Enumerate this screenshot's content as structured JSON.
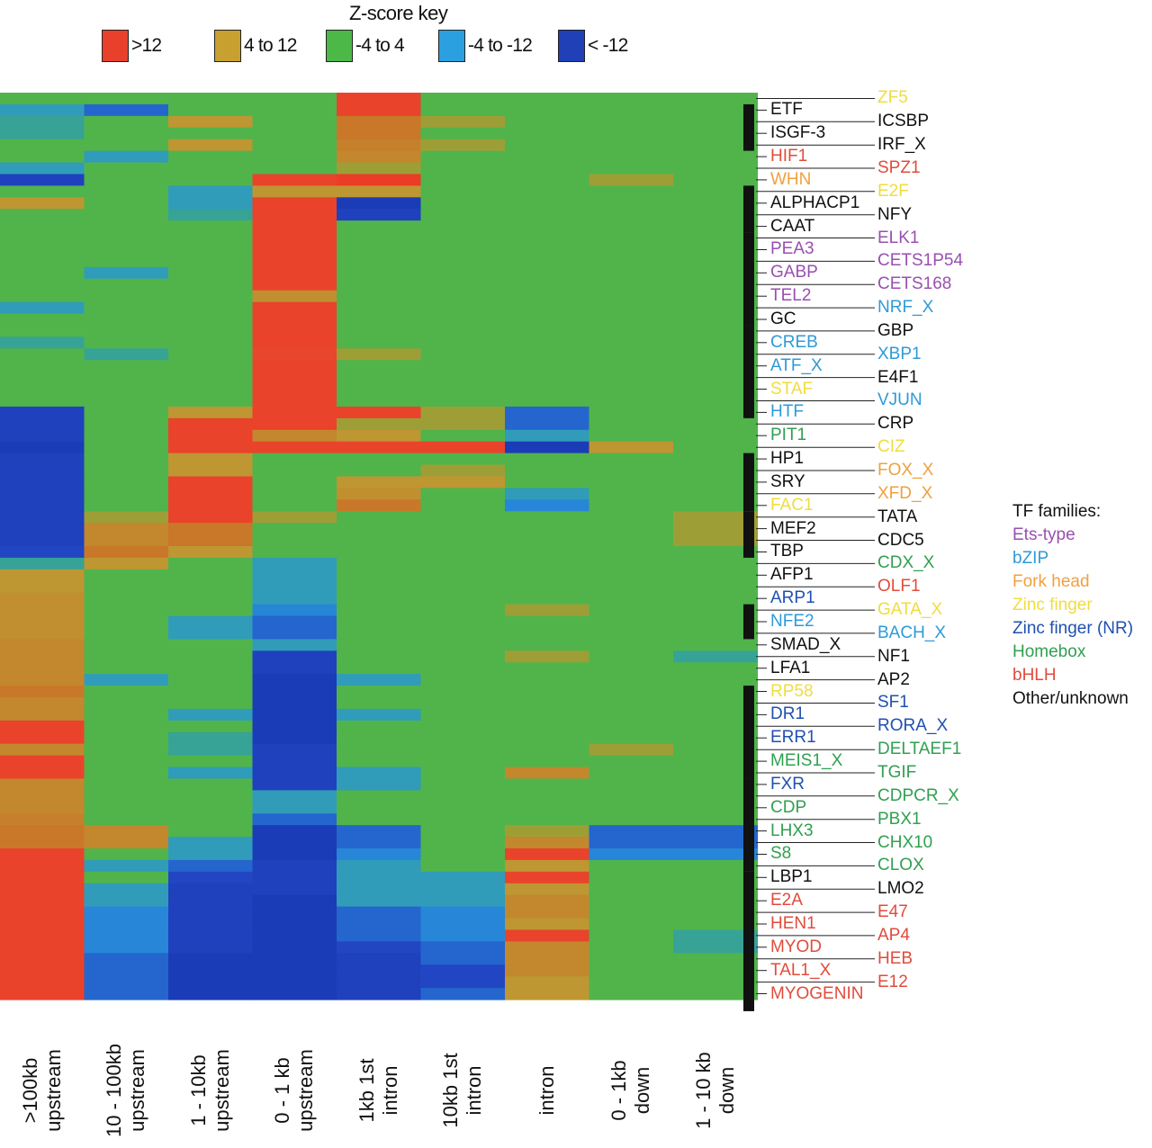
{
  "key": {
    "title": "Z-score key",
    "items": [
      {
        "label": ">12",
        "color": "#e8402a"
      },
      {
        "label": "4 to 12",
        "color": "#c8a030"
      },
      {
        "label": "-4 to 4",
        "color": "#4cb848"
      },
      {
        "label": "-4 to -12",
        "color": "#2aa0e0"
      },
      {
        "label": "< -12",
        "color": "#2040b8"
      }
    ]
  },
  "families": {
    "title": "TF families:",
    "items": [
      {
        "label": "Ets-type",
        "color": "#9a4fb0"
      },
      {
        "label": "bZIP",
        "color": "#2e9ad8"
      },
      {
        "label": "Fork head",
        "color": "#f0a040"
      },
      {
        "label": "Zinc finger",
        "color": "#f0dc40"
      },
      {
        "label": "Zinc finger (NR)",
        "color": "#2050b0"
      },
      {
        "label": "Homebox",
        "color": "#30a050"
      },
      {
        "label": "bHLH",
        "color": "#e04c3c"
      },
      {
        "label": "Other/unknown",
        "color": "#111111"
      }
    ]
  },
  "chart_data": {
    "type": "heatmap",
    "title": "Z-score key",
    "columns": [
      ">100kb upstream",
      "10 - 100kb upstream",
      "1 - 10kb upstream",
      "0 - 1 kb upstream",
      "1kb 1st intron",
      "10kb 1st intron",
      "intron",
      "0 - 1kb down",
      "1 - 10 kb down"
    ],
    "column_lines": [
      [
        ">100kb",
        "upstream"
      ],
      [
        "10 - 100kb",
        "upstream"
      ],
      [
        "1 - 10kb",
        "upstream"
      ],
      [
        "0 - 1 kb",
        "upstream"
      ],
      [
        "1kb 1st",
        "intron"
      ],
      [
        "10kb 1st",
        "intron"
      ],
      [
        "intron"
      ],
      [
        "0 - 1kb",
        "down"
      ],
      [
        "1 - 10 kb",
        "down"
      ]
    ],
    "rows": [
      {
        "name": "ZF5",
        "family": "Zinc finger",
        "values": [
          0,
          0,
          0,
          0,
          14,
          0,
          0,
          0,
          0
        ]
      },
      {
        "name": "ETF",
        "family": "Other/unknown",
        "values": [
          -6,
          -10,
          0,
          0,
          14,
          0,
          0,
          0,
          0
        ]
      },
      {
        "name": "ICSBP",
        "family": "Other/unknown",
        "values": [
          -5,
          0,
          6,
          0,
          10,
          5,
          0,
          0,
          0
        ]
      },
      {
        "name": "ISGF-3",
        "family": "Other/unknown",
        "values": [
          -5,
          0,
          0,
          0,
          10,
          0,
          0,
          0,
          0
        ]
      },
      {
        "name": "IRF_X",
        "family": "Other/unknown",
        "values": [
          0,
          0,
          6,
          0,
          9,
          5,
          0,
          0,
          0
        ]
      },
      {
        "name": "HIF1",
        "family": "bHLH",
        "values": [
          0,
          -6,
          0,
          0,
          8,
          0,
          0,
          0,
          0
        ]
      },
      {
        "name": "SPZ1",
        "family": "bHLH",
        "values": [
          -6,
          0,
          0,
          0,
          5,
          0,
          0,
          0,
          0
        ]
      },
      {
        "name": "WHN",
        "family": "Fork head",
        "values": [
          -13,
          0,
          0,
          14,
          16,
          0,
          0,
          5,
          0
        ]
      },
      {
        "name": "E2F",
        "family": "Zinc finger",
        "values": [
          0,
          0,
          -6,
          6,
          6,
          0,
          0,
          0,
          0
        ]
      },
      {
        "name": "ALPHACP1",
        "family": "Other/unknown",
        "values": [
          6,
          0,
          -6,
          14,
          -14,
          0,
          0,
          0,
          0
        ]
      },
      {
        "name": "NFY",
        "family": "Other/unknown",
        "values": [
          0,
          0,
          -5,
          14,
          -13,
          0,
          0,
          0,
          0
        ]
      },
      {
        "name": "CAAT",
        "family": "Other/unknown",
        "values": [
          0,
          0,
          0,
          14,
          0,
          0,
          0,
          0,
          0
        ]
      },
      {
        "name": "ELK1",
        "family": "Ets-type",
        "values": [
          0,
          0,
          0,
          14,
          0,
          0,
          0,
          0,
          0
        ]
      },
      {
        "name": "PEA3",
        "family": "Ets-type",
        "values": [
          0,
          0,
          0,
          14,
          0,
          0,
          0,
          0,
          0
        ]
      },
      {
        "name": "CETS1P54",
        "family": "Ets-type",
        "values": [
          0,
          0,
          0,
          14,
          0,
          0,
          0,
          0,
          0
        ]
      },
      {
        "name": "GABP",
        "family": "Ets-type",
        "values": [
          0,
          -6,
          0,
          14,
          0,
          0,
          0,
          0,
          0
        ]
      },
      {
        "name": "CETS168",
        "family": "Ets-type",
        "values": [
          0,
          0,
          0,
          14,
          0,
          0,
          0,
          0,
          0
        ]
      },
      {
        "name": "TEL2",
        "family": "Ets-type",
        "values": [
          0,
          0,
          0,
          7,
          0,
          0,
          0,
          0,
          0
        ]
      },
      {
        "name": "NRF_X",
        "family": "bZIP",
        "values": [
          -6,
          0,
          0,
          14,
          0,
          0,
          0,
          0,
          0
        ]
      },
      {
        "name": "GC",
        "family": "Other/unknown",
        "values": [
          0,
          0,
          0,
          14,
          0,
          0,
          0,
          0,
          0
        ]
      },
      {
        "name": "GBP",
        "family": "Other/unknown",
        "values": [
          0,
          0,
          0,
          14,
          0,
          0,
          0,
          0,
          0
        ]
      },
      {
        "name": "CREB",
        "family": "bZIP",
        "values": [
          -5,
          0,
          0,
          14,
          0,
          0,
          0,
          0,
          0
        ]
      },
      {
        "name": "XBP1",
        "family": "bZIP",
        "values": [
          0,
          -5,
          0,
          13,
          5,
          0,
          0,
          0,
          0
        ]
      },
      {
        "name": "ATF_X",
        "family": "bZIP",
        "values": [
          0,
          0,
          0,
          14,
          0,
          0,
          0,
          0,
          0
        ]
      },
      {
        "name": "E4F1",
        "family": "Other/unknown",
        "values": [
          0,
          0,
          0,
          14,
          0,
          0,
          0,
          0,
          0
        ]
      },
      {
        "name": "STAF",
        "family": "Zinc finger",
        "values": [
          0,
          0,
          0,
          14,
          0,
          0,
          0,
          0,
          0
        ]
      },
      {
        "name": "VJUN",
        "family": "bZIP",
        "values": [
          0,
          0,
          0,
          14,
          0,
          0,
          0,
          0,
          0
        ]
      },
      {
        "name": "HTF",
        "family": "bZIP",
        "values": [
          -13,
          0,
          6,
          14,
          14,
          5,
          -10,
          0,
          0
        ]
      },
      {
        "name": "CRP",
        "family": "Other/unknown",
        "values": [
          -13,
          0,
          14,
          14,
          5,
          5,
          -10,
          0,
          0
        ]
      },
      {
        "name": "PIT1",
        "family": "Homebox",
        "values": [
          -13,
          0,
          14,
          8,
          6,
          0,
          -6,
          0,
          0
        ]
      },
      {
        "name": "CIZ",
        "family": "Zinc finger",
        "values": [
          -14,
          0,
          14,
          14,
          14,
          14,
          -14,
          6,
          0
        ]
      },
      {
        "name": "HP1",
        "family": "Other/unknown",
        "values": [
          -13,
          0,
          6,
          0,
          0,
          0,
          0,
          0,
          0
        ]
      },
      {
        "name": "FOX_X",
        "family": "Fork head",
        "values": [
          -13,
          0,
          6,
          0,
          0,
          5,
          0,
          0,
          0
        ]
      },
      {
        "name": "SRY",
        "family": "Other/unknown",
        "values": [
          -13,
          0,
          14,
          0,
          6,
          6,
          0,
          0,
          0
        ]
      },
      {
        "name": "XFD_X",
        "family": "Fork head",
        "values": [
          -13,
          0,
          14,
          0,
          7,
          0,
          -6,
          0,
          0
        ]
      },
      {
        "name": "FAC1",
        "family": "Zinc finger",
        "values": [
          -13,
          0,
          14,
          0,
          10,
          0,
          -8,
          0,
          0
        ]
      },
      {
        "name": "TATA",
        "family": "Other/unknown",
        "values": [
          -13,
          5,
          14,
          5,
          0,
          0,
          0,
          0,
          5
        ]
      },
      {
        "name": "MEF2",
        "family": "Other/unknown",
        "values": [
          -13,
          8,
          10,
          0,
          0,
          0,
          0,
          0,
          5
        ]
      },
      {
        "name": "CDC5",
        "family": "Other/unknown",
        "values": [
          -13,
          8,
          10,
          0,
          0,
          0,
          0,
          0,
          5
        ]
      },
      {
        "name": "TBP",
        "family": "Other/unknown",
        "values": [
          -12,
          10,
          6,
          0,
          0,
          0,
          0,
          0,
          0
        ]
      },
      {
        "name": "CDX_X",
        "family": "Homebox",
        "values": [
          -5,
          6,
          0,
          -6,
          0,
          0,
          0,
          0,
          0
        ]
      },
      {
        "name": "AFP1",
        "family": "Other/unknown",
        "values": [
          6,
          0,
          0,
          -6,
          0,
          0,
          0,
          0,
          0
        ]
      },
      {
        "name": "OLF1",
        "family": "bHLH",
        "values": [
          6,
          0,
          0,
          -6,
          0,
          0,
          0,
          0,
          0
        ]
      },
      {
        "name": "ARP1",
        "family": "Zinc finger (NR)",
        "values": [
          7,
          0,
          0,
          -6,
          0,
          0,
          0,
          0,
          0
        ]
      },
      {
        "name": "GATA_X",
        "family": "Zinc finger",
        "values": [
          7,
          0,
          0,
          -8,
          0,
          0,
          5,
          0,
          0
        ]
      },
      {
        "name": "NFE2",
        "family": "bZIP",
        "values": [
          7,
          0,
          -6,
          -10,
          0,
          0,
          0,
          0,
          0
        ]
      },
      {
        "name": "BACH_X",
        "family": "bZIP",
        "values": [
          7,
          0,
          -6,
          -10,
          0,
          0,
          0,
          0,
          0
        ]
      },
      {
        "name": "SMAD_X",
        "family": "Other/unknown",
        "values": [
          8,
          0,
          0,
          -6,
          0,
          0,
          0,
          0,
          0
        ]
      },
      {
        "name": "NF1",
        "family": "Other/unknown",
        "values": [
          8,
          0,
          0,
          -13,
          0,
          0,
          5,
          0,
          -5
        ]
      },
      {
        "name": "LFA1",
        "family": "Other/unknown",
        "values": [
          8,
          0,
          0,
          -13,
          0,
          0,
          0,
          0,
          0
        ]
      },
      {
        "name": "AP2",
        "family": "Other/unknown",
        "values": [
          8,
          -6,
          0,
          -14,
          -6,
          0,
          0,
          0,
          0
        ]
      },
      {
        "name": "RP58",
        "family": "Zinc finger",
        "values": [
          10,
          0,
          0,
          -14,
          0,
          0,
          0,
          0,
          0
        ]
      },
      {
        "name": "SF1",
        "family": "Zinc finger (NR)",
        "values": [
          8,
          0,
          0,
          -14,
          0,
          0,
          0,
          0,
          0
        ]
      },
      {
        "name": "DR1",
        "family": "Zinc finger (NR)",
        "values": [
          8,
          0,
          -6,
          -14,
          -6,
          0,
          0,
          0,
          0
        ]
      },
      {
        "name": "RORA_X",
        "family": "Zinc finger (NR)",
        "values": [
          14,
          0,
          0,
          -14,
          0,
          0,
          0,
          0,
          0
        ]
      },
      {
        "name": "ERR1",
        "family": "Zinc finger (NR)",
        "values": [
          14,
          0,
          -5,
          -14,
          0,
          0,
          0,
          0,
          0
        ]
      },
      {
        "name": "DELTAEF1",
        "family": "Homebox",
        "values": [
          8,
          0,
          -5,
          -13,
          0,
          0,
          0,
          5,
          0
        ]
      },
      {
        "name": "MEIS1_X",
        "family": "Homebox",
        "values": [
          14,
          0,
          0,
          -13,
          0,
          0,
          0,
          0,
          0
        ]
      },
      {
        "name": "TGIF",
        "family": "Homebox",
        "values": [
          14,
          0,
          -6,
          -13,
          -6,
          0,
          8,
          0,
          0
        ]
      },
      {
        "name": "FXR",
        "family": "Zinc finger (NR)",
        "values": [
          8,
          0,
          0,
          -13,
          -6,
          0,
          0,
          0,
          0
        ]
      },
      {
        "name": "CDPCR_X",
        "family": "Homebox",
        "values": [
          8,
          0,
          0,
          -6,
          0,
          0,
          0,
          0,
          0
        ]
      },
      {
        "name": "CDP",
        "family": "Homebox",
        "values": [
          8,
          0,
          0,
          -6,
          0,
          0,
          0,
          0,
          0
        ]
      },
      {
        "name": "PBX1",
        "family": "Homebox",
        "values": [
          9,
          0,
          0,
          -10,
          0,
          0,
          0,
          0,
          0
        ]
      },
      {
        "name": "LHX3",
        "family": "Homebox",
        "values": [
          10,
          8,
          0,
          -14,
          -10,
          0,
          5,
          -10,
          -10
        ]
      },
      {
        "name": "CHX10",
        "family": "Homebox",
        "values": [
          10,
          8,
          -6,
          -14,
          -10,
          0,
          8,
          -10,
          -10
        ]
      },
      {
        "name": "S8",
        "family": "Homebox",
        "values": [
          14,
          0,
          -6,
          -14,
          -8,
          0,
          14,
          -8,
          -8
        ]
      },
      {
        "name": "CLOX",
        "family": "Homebox",
        "values": [
          14,
          -6,
          -10,
          -13,
          -6,
          0,
          6,
          0,
          0
        ]
      },
      {
        "name": "LBP1",
        "family": "Other/unknown",
        "values": [
          14,
          0,
          -12,
          -13,
          -6,
          -6,
          14,
          0,
          0
        ]
      },
      {
        "name": "LMO2",
        "family": "Other/unknown",
        "values": [
          14,
          -6,
          -13,
          -13,
          -6,
          -6,
          6,
          0,
          0
        ]
      },
      {
        "name": "E2A",
        "family": "bHLH",
        "values": [
          14,
          -6,
          -13,
          -14,
          -6,
          -6,
          8,
          0,
          0
        ]
      },
      {
        "name": "E47",
        "family": "bHLH",
        "values": [
          14,
          -8,
          -13,
          -14,
          -10,
          -8,
          8,
          0,
          0
        ]
      },
      {
        "name": "HEN1",
        "family": "bHLH",
        "values": [
          14,
          -8,
          -13,
          -14,
          -10,
          -8,
          6,
          0,
          0
        ]
      },
      {
        "name": "AP4",
        "family": "bHLH",
        "values": [
          14,
          -8,
          -13,
          -14,
          -10,
          -8,
          14,
          0,
          -5
        ]
      },
      {
        "name": "MYOD",
        "family": "bHLH",
        "values": [
          14,
          -8,
          -13,
          -14,
          -12,
          -10,
          8,
          0,
          -5
        ]
      },
      {
        "name": "HEB",
        "family": "bHLH",
        "values": [
          14,
          -10,
          -14,
          -14,
          -13,
          -10,
          8,
          0,
          0
        ]
      },
      {
        "name": "TAL1_X",
        "family": "bHLH",
        "values": [
          14,
          -10,
          -14,
          -14,
          -13,
          -12,
          8,
          0,
          0
        ]
      },
      {
        "name": "E12",
        "family": "bHLH",
        "values": [
          14,
          -10,
          -14,
          -14,
          -13,
          -12,
          6,
          0,
          0
        ]
      },
      {
        "name": "MYOGENIN",
        "family": "bHLH",
        "values": [
          14,
          -10,
          -14,
          -14,
          -13,
          -10,
          6,
          0,
          0
        ]
      }
    ],
    "color_scale": [
      {
        "range": ">12",
        "color": "#e8402a"
      },
      {
        "range": "4 to 12",
        "color": "#c8a030"
      },
      {
        "range": "-4 to 4",
        "color": "#4cb848"
      },
      {
        "range": "-4 to -12",
        "color": "#2aa0e0"
      },
      {
        "range": "< -12",
        "color": "#2040b8"
      }
    ],
    "legend_position": "top",
    "grid": false
  }
}
